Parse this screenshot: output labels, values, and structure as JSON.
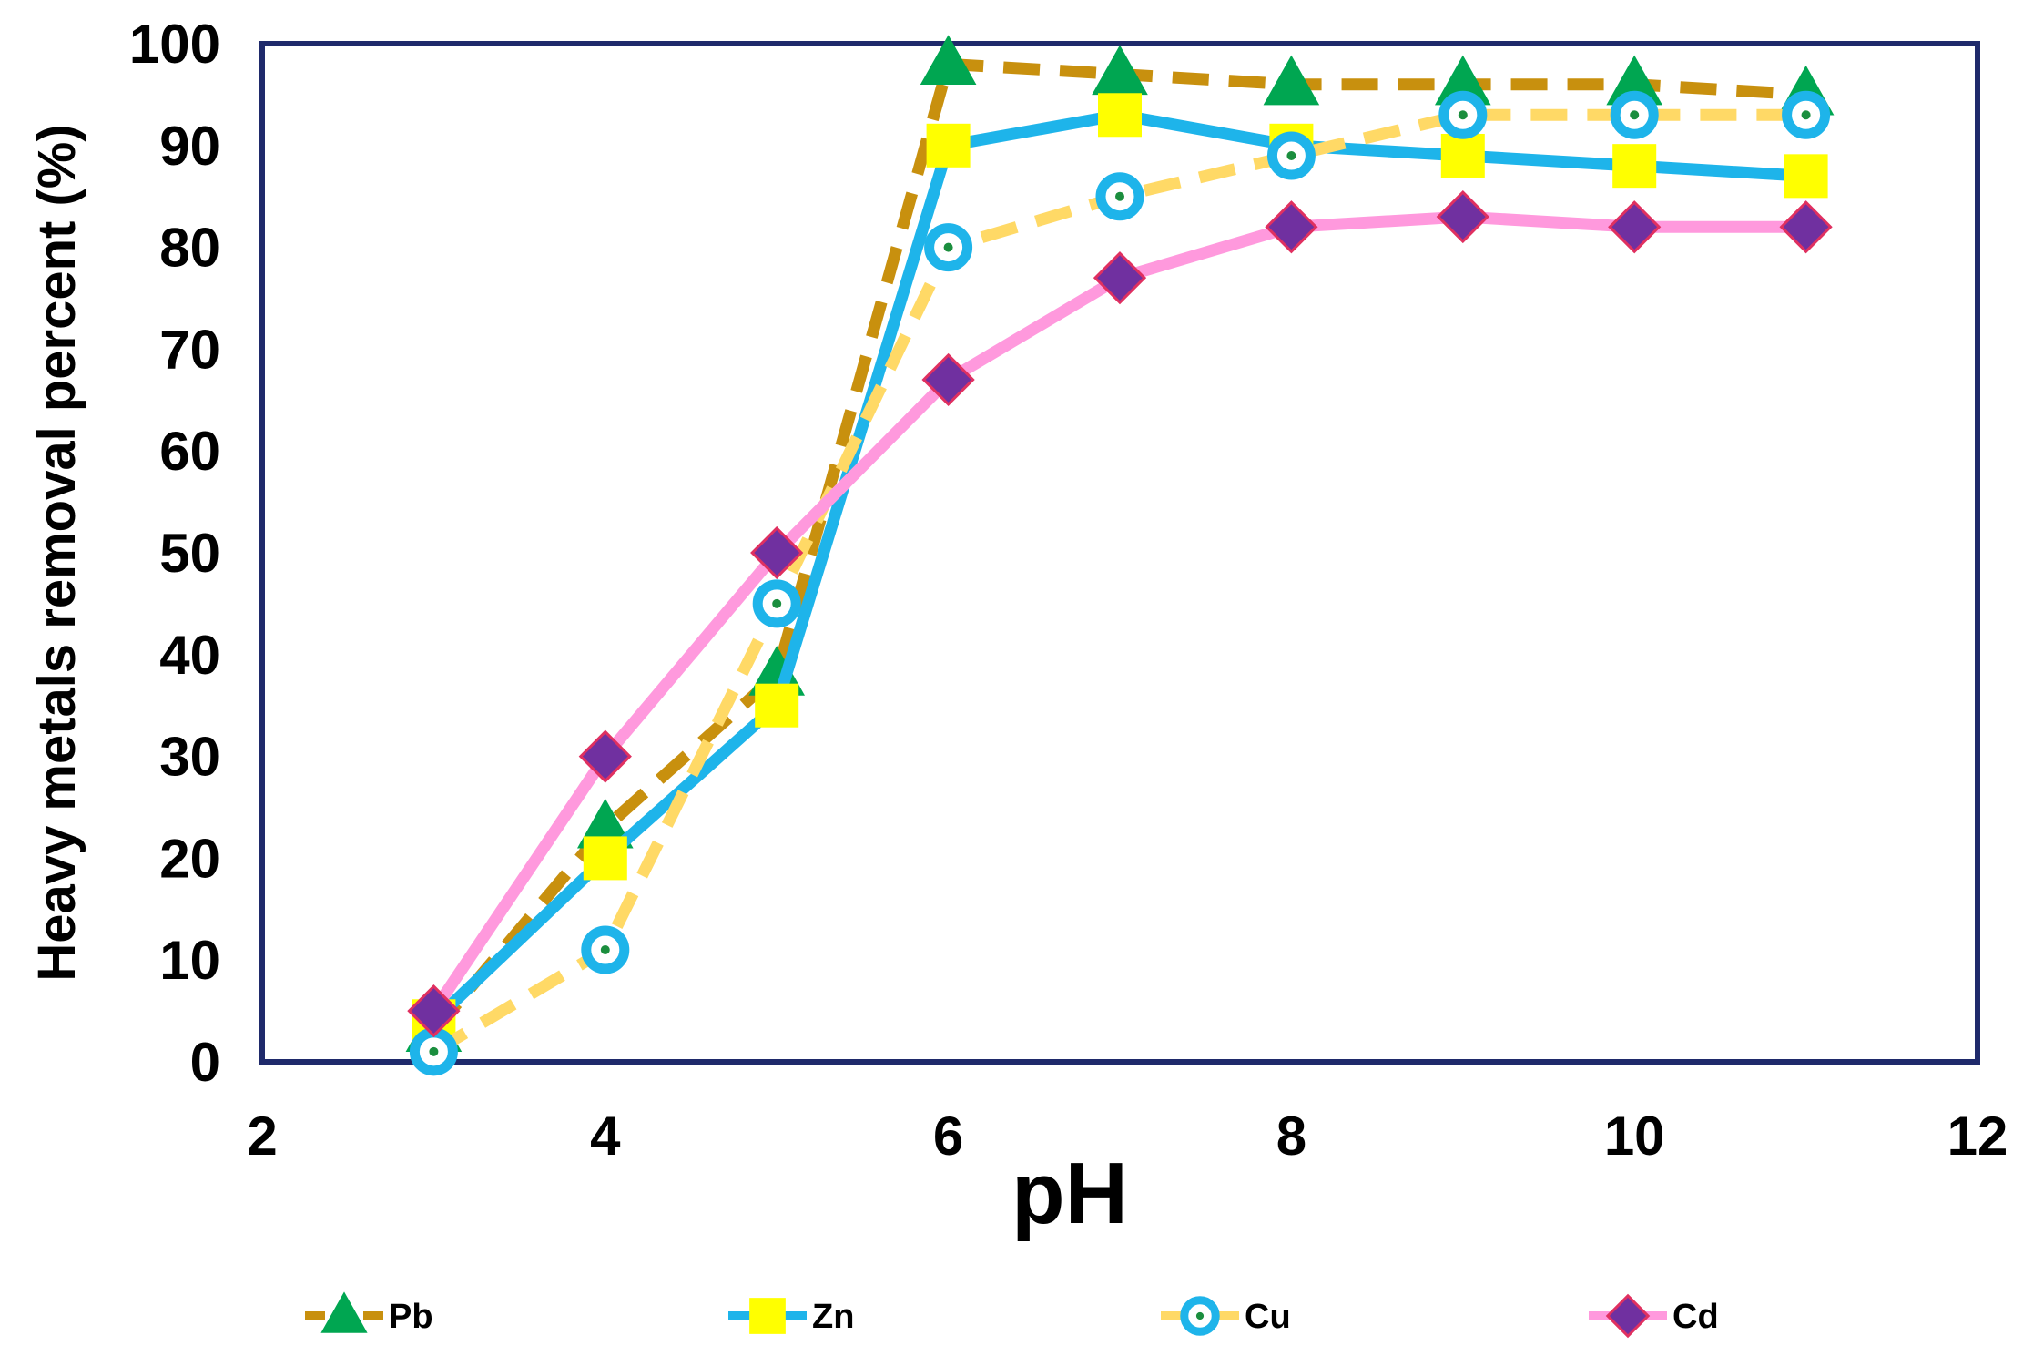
{
  "chart_data": {
    "type": "line",
    "title": "",
    "xlabel": "pH",
    "ylabel": "Heavy metals removal percent (%)",
    "xlim": [
      2,
      12
    ],
    "ylim": [
      0,
      100
    ],
    "xticks": [
      2,
      4,
      6,
      8,
      10,
      12
    ],
    "yticks": [
      0,
      10,
      20,
      30,
      40,
      50,
      60,
      70,
      80,
      90,
      100
    ],
    "grid": false,
    "legend_position": "bottom",
    "x": [
      3,
      4,
      5,
      6,
      7,
      8,
      9,
      10,
      11
    ],
    "series": [
      {
        "name": "Pb",
        "marker": "triangle",
        "line_style": "dashed",
        "line_color": "#C8900E",
        "marker_fill": "#00A651",
        "marker_edge": "#00A651",
        "values": [
          3,
          23,
          38,
          98,
          97,
          96,
          96,
          96,
          95
        ]
      },
      {
        "name": "Zn",
        "marker": "square",
        "line_style": "solid",
        "line_color": "#1EB4EA",
        "marker_fill": "#FFFF00",
        "marker_edge": "#FFFF00",
        "values": [
          4,
          20,
          35,
          90,
          93,
          90,
          89,
          88,
          87
        ]
      },
      {
        "name": "Cu",
        "marker": "circle",
        "line_style": "dashed",
        "line_color": "#FFD966",
        "marker_fill": "#1EB4EA",
        "marker_edge": "#1EB4EA",
        "marker_center": "#1B8E3E",
        "values": [
          1,
          11,
          45,
          80,
          85,
          89,
          93,
          93,
          93
        ]
      },
      {
        "name": "Cd",
        "marker": "diamond",
        "line_style": "solid",
        "line_color": "#FF99DD",
        "marker_fill": "#7030A0",
        "marker_edge": "#E03060",
        "values": [
          5,
          30,
          50,
          67,
          77,
          82,
          83,
          82,
          82
        ]
      }
    ],
    "frame_color": "#1F2A6B"
  }
}
